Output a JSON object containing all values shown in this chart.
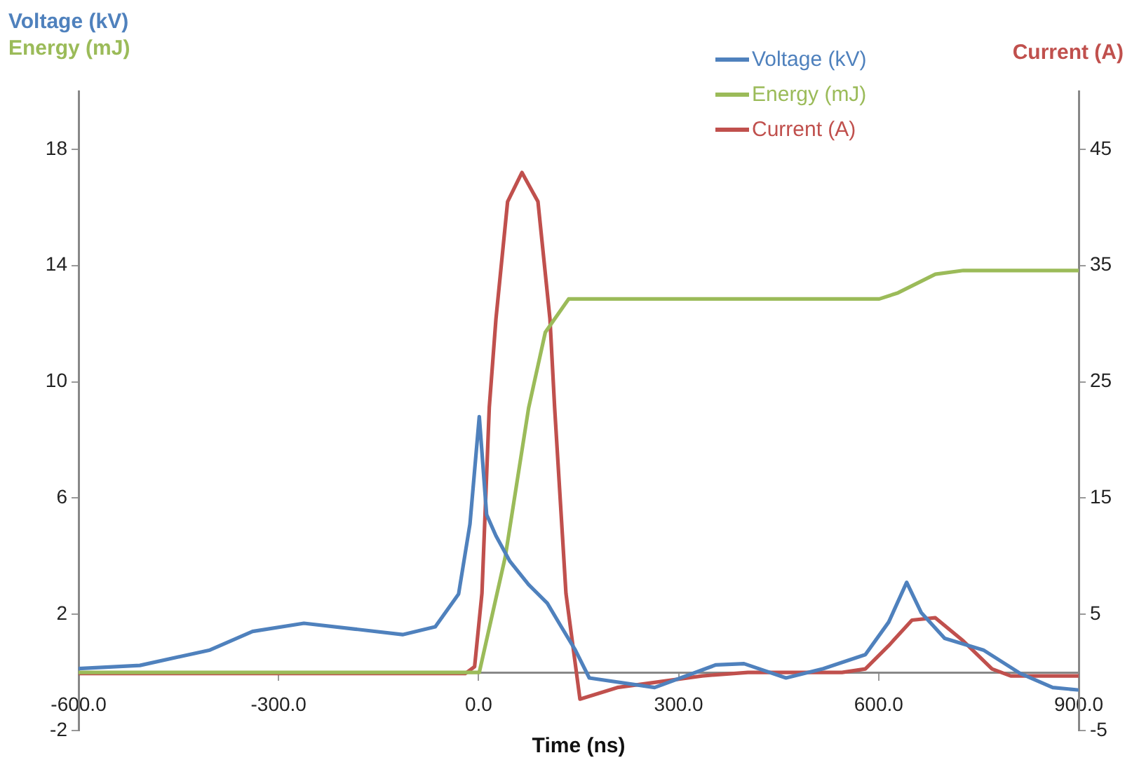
{
  "chart_data": {
    "type": "line",
    "xlabel": "Time (ns)",
    "ylabel": "Voltage (kV)\nEnergy (mJ)",
    "y2label": "Current (A)",
    "xlim": [
      -600,
      900
    ],
    "xticks": [
      {
        "value": -600,
        "label": "-600.0"
      },
      {
        "value": -300,
        "label": "-300.0"
      },
      {
        "value": 0,
        "label": "0.0"
      },
      {
        "value": 300,
        "label": "300.0"
      },
      {
        "value": 600,
        "label": "600.0"
      },
      {
        "value": 900,
        "label": "900.0"
      }
    ],
    "ylim": [
      -2,
      20
    ],
    "yticks": [
      -2,
      2,
      6,
      10,
      14,
      18
    ],
    "y2lim": [
      -5,
      50
    ],
    "y2ticks": [
      -5,
      5,
      15,
      25,
      35,
      45
    ],
    "grid": false,
    "legend": "top right",
    "marker": "none",
    "line_style": "solid",
    "series": [
      {
        "name": "Voltage (kV)",
        "color": "#4f81bd",
        "x": [
          -600,
          -508,
          -403,
          -339,
          -262,
          -185,
          -114,
          -65,
          -30,
          -13,
          1,
          12,
          26,
          47,
          75,
          103,
          124,
          145,
          166,
          264,
          356,
          398,
          461,
          517,
          580,
          615,
          642,
          664,
          699,
          757,
          812,
          861,
          898
        ],
        "values": [
          0.13,
          0.24,
          0.77,
          1.41,
          1.69,
          1.49,
          1.3,
          1.57,
          2.7,
          5.1,
          8.8,
          5.43,
          4.7,
          3.82,
          3.02,
          2.38,
          1.57,
          0.77,
          -0.19,
          -0.52,
          0.26,
          0.3,
          -0.19,
          0.13,
          0.61,
          1.73,
          3.1,
          2.05,
          1.17,
          0.77,
          -0.03,
          -0.52,
          -0.6
        ]
      },
      {
        "name": "Energy (mJ)",
        "color": "#9bbb59",
        "x": [
          -600,
          -100,
          1,
          40,
          75,
          100,
          135,
          601,
          629,
          685,
          727,
          900
        ],
        "values": [
          0,
          0,
          0,
          3.98,
          9.1,
          11.7,
          12.85,
          12.85,
          13.06,
          13.7,
          13.83,
          13.83
        ]
      },
      {
        "name": "Current (A)",
        "color": "#c0504d",
        "axis": "y2",
        "x": [
          -600,
          -20,
          -6,
          5,
          16,
          26,
          43.5,
          65,
          89,
          107,
          114,
          131,
          152,
          208,
          335,
          404,
          545,
          580,
          615,
          650,
          685,
          727,
          770,
          798,
          900
        ],
        "values": [
          -0.1,
          -0.1,
          0.5,
          6.8,
          22.8,
          30.4,
          40.5,
          43,
          40.5,
          30.4,
          22.8,
          6.8,
          -2.3,
          -1.3,
          -0.3,
          0,
          0,
          0.3,
          2.3,
          4.5,
          4.7,
          2.7,
          0.3,
          -0.3,
          -0.3
        ]
      }
    ]
  }
}
